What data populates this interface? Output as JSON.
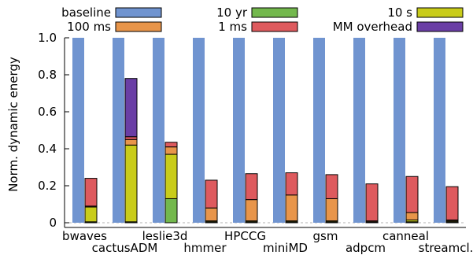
{
  "chart_data": {
    "type": "bar",
    "ylabel": "Norm. dynamic energy",
    "ylim": [
      0,
      1.0
    ],
    "yticks": [
      0,
      0.2,
      0.4,
      0.6,
      0.8,
      1.0
    ],
    "ytick_labels": [
      "0",
      "0.2",
      "0.4",
      "0.6",
      "0.8",
      "1.0"
    ],
    "categories": [
      "bwaves",
      "cactusADM",
      "leslie3d",
      "hmmer",
      "HPCCG",
      "miniMD",
      "gsm",
      "adpcm",
      "canneal",
      "streamcl."
    ],
    "legend_entries": [
      {
        "name": "baseline",
        "color": "#7094d0"
      },
      {
        "name": "10 yr",
        "color": "#73b84d"
      },
      {
        "name": "10 s",
        "color": "#c9cc1a"
      },
      {
        "name": "100 ms",
        "color": "#e8954a"
      },
      {
        "name": "1 ms",
        "color": "#de5a5e"
      },
      {
        "name": "MM overhead",
        "color": "#6a3ea5"
      }
    ],
    "baseline": {
      "name": "baseline",
      "values": [
        1,
        1,
        1,
        1,
        1,
        1,
        1,
        1,
        1,
        1
      ]
    },
    "stack_order": [
      "10 yr",
      "10 s",
      "100 ms",
      "1 ms",
      "MM overhead"
    ],
    "stacked_series": [
      {
        "name": "10 yr",
        "values": [
          0.005,
          0.005,
          0.13,
          0.005,
          0.005,
          0.005,
          0.005,
          0.003,
          0.005,
          0.005
        ]
      },
      {
        "name": "10 s",
        "values": [
          0.08,
          0.415,
          0.24,
          0.005,
          0.005,
          0.005,
          0.005,
          0.002,
          0.01,
          0.005
        ]
      },
      {
        "name": "100 ms",
        "values": [
          0.005,
          0.03,
          0.04,
          0.07,
          0.115,
          0.14,
          0.12,
          0.005,
          0.04,
          0.005
        ]
      },
      {
        "name": "1 ms",
        "values": [
          0.15,
          0.015,
          0.025,
          0.15,
          0.14,
          0.12,
          0.13,
          0.2,
          0.195,
          0.18
        ]
      },
      {
        "name": "MM overhead",
        "values": [
          0,
          0.315,
          0,
          0,
          0,
          0,
          0,
          0,
          0,
          0
        ]
      }
    ],
    "reference_line": 0,
    "colors": {
      "baseline": "#7094d0",
      "10 yr": "#73b84d",
      "10 s": "#c9cc1a",
      "100 ms": "#e8954a",
      "1 ms": "#de5a5e",
      "MM overhead": "#6a3ea5",
      "outline": "#000000"
    }
  }
}
